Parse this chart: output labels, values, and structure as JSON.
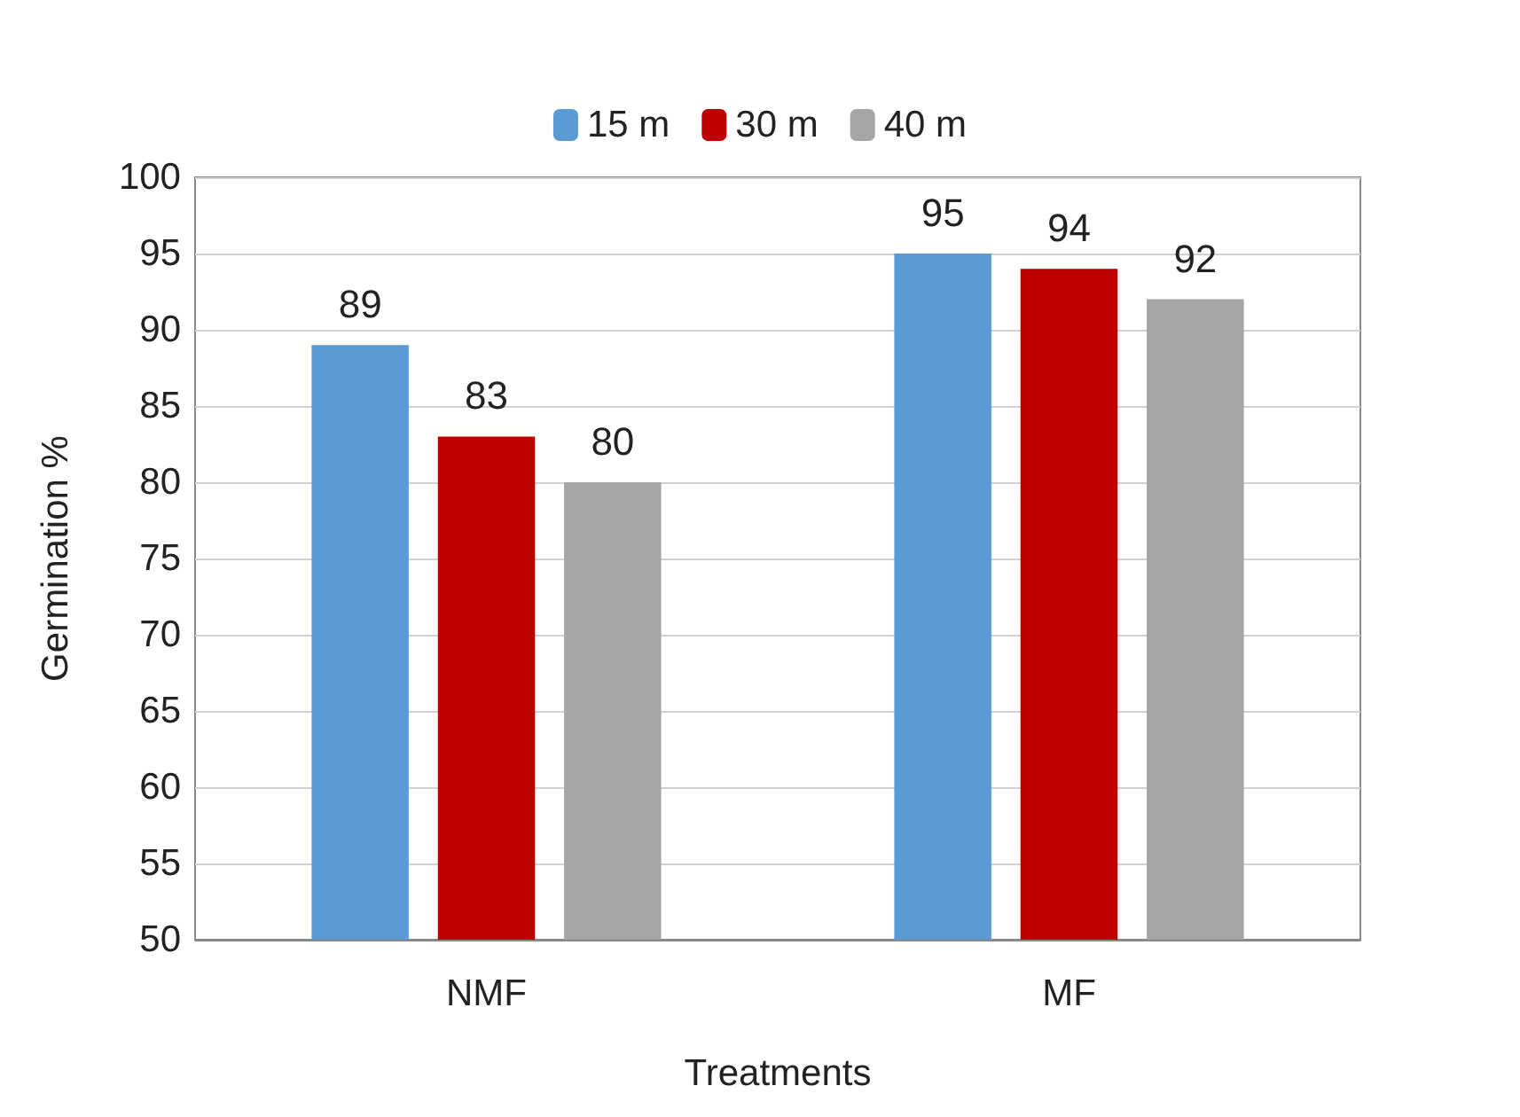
{
  "chart_data": {
    "type": "bar",
    "xlabel": "Treatments",
    "ylabel": "Germination %",
    "categories": [
      "NMF",
      "MF"
    ],
    "series": [
      {
        "name": "15 m",
        "color": "#5b9bd5",
        "values": [
          89,
          95
        ]
      },
      {
        "name": "30 m",
        "color": "#c00000",
        "values": [
          83,
          94
        ]
      },
      {
        "name": "40 m",
        "color": "#a5a5a5",
        "values": [
          80,
          92
        ]
      }
    ],
    "ylim": [
      50,
      100
    ],
    "yticks": [
      50,
      55,
      60,
      65,
      70,
      75,
      80,
      85,
      90,
      95,
      100
    ],
    "grid": "y",
    "legend": "top",
    "data_labels": true
  }
}
